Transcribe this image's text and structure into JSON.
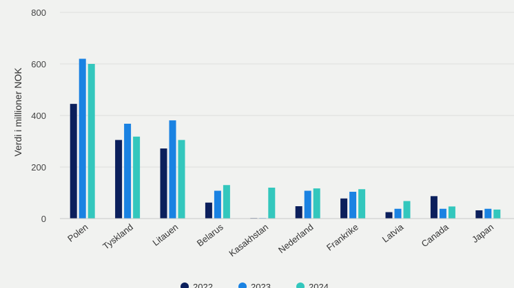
{
  "chart_data": {
    "type": "bar",
    "ylabel": "Verdi i millioner NOK",
    "xlabel": "",
    "ylim": [
      0,
      800
    ],
    "yticks": [
      0,
      200,
      400,
      600,
      800
    ],
    "grid": true,
    "legend_position": "bottom",
    "categories": [
      "Polen",
      "Tyskland",
      "Litauen",
      "Belarus",
      "Kasakhstan",
      "Nederland",
      "Frankrike",
      "Latvia",
      "Canada",
      "Japan"
    ],
    "series": [
      {
        "name": "2022",
        "color": "#0b1f5c",
        "values": [
          445,
          305,
          272,
          62,
          2,
          48,
          78,
          25,
          87,
          32
        ]
      },
      {
        "name": "2023",
        "color": "#1a82e2",
        "values": [
          620,
          368,
          381,
          108,
          2,
          108,
          104,
          38,
          38,
          38
        ]
      },
      {
        "name": "2024",
        "color": "#33c7bd",
        "values": [
          600,
          318,
          305,
          130,
          120,
          117,
          114,
          68,
          47,
          35
        ]
      }
    ]
  }
}
